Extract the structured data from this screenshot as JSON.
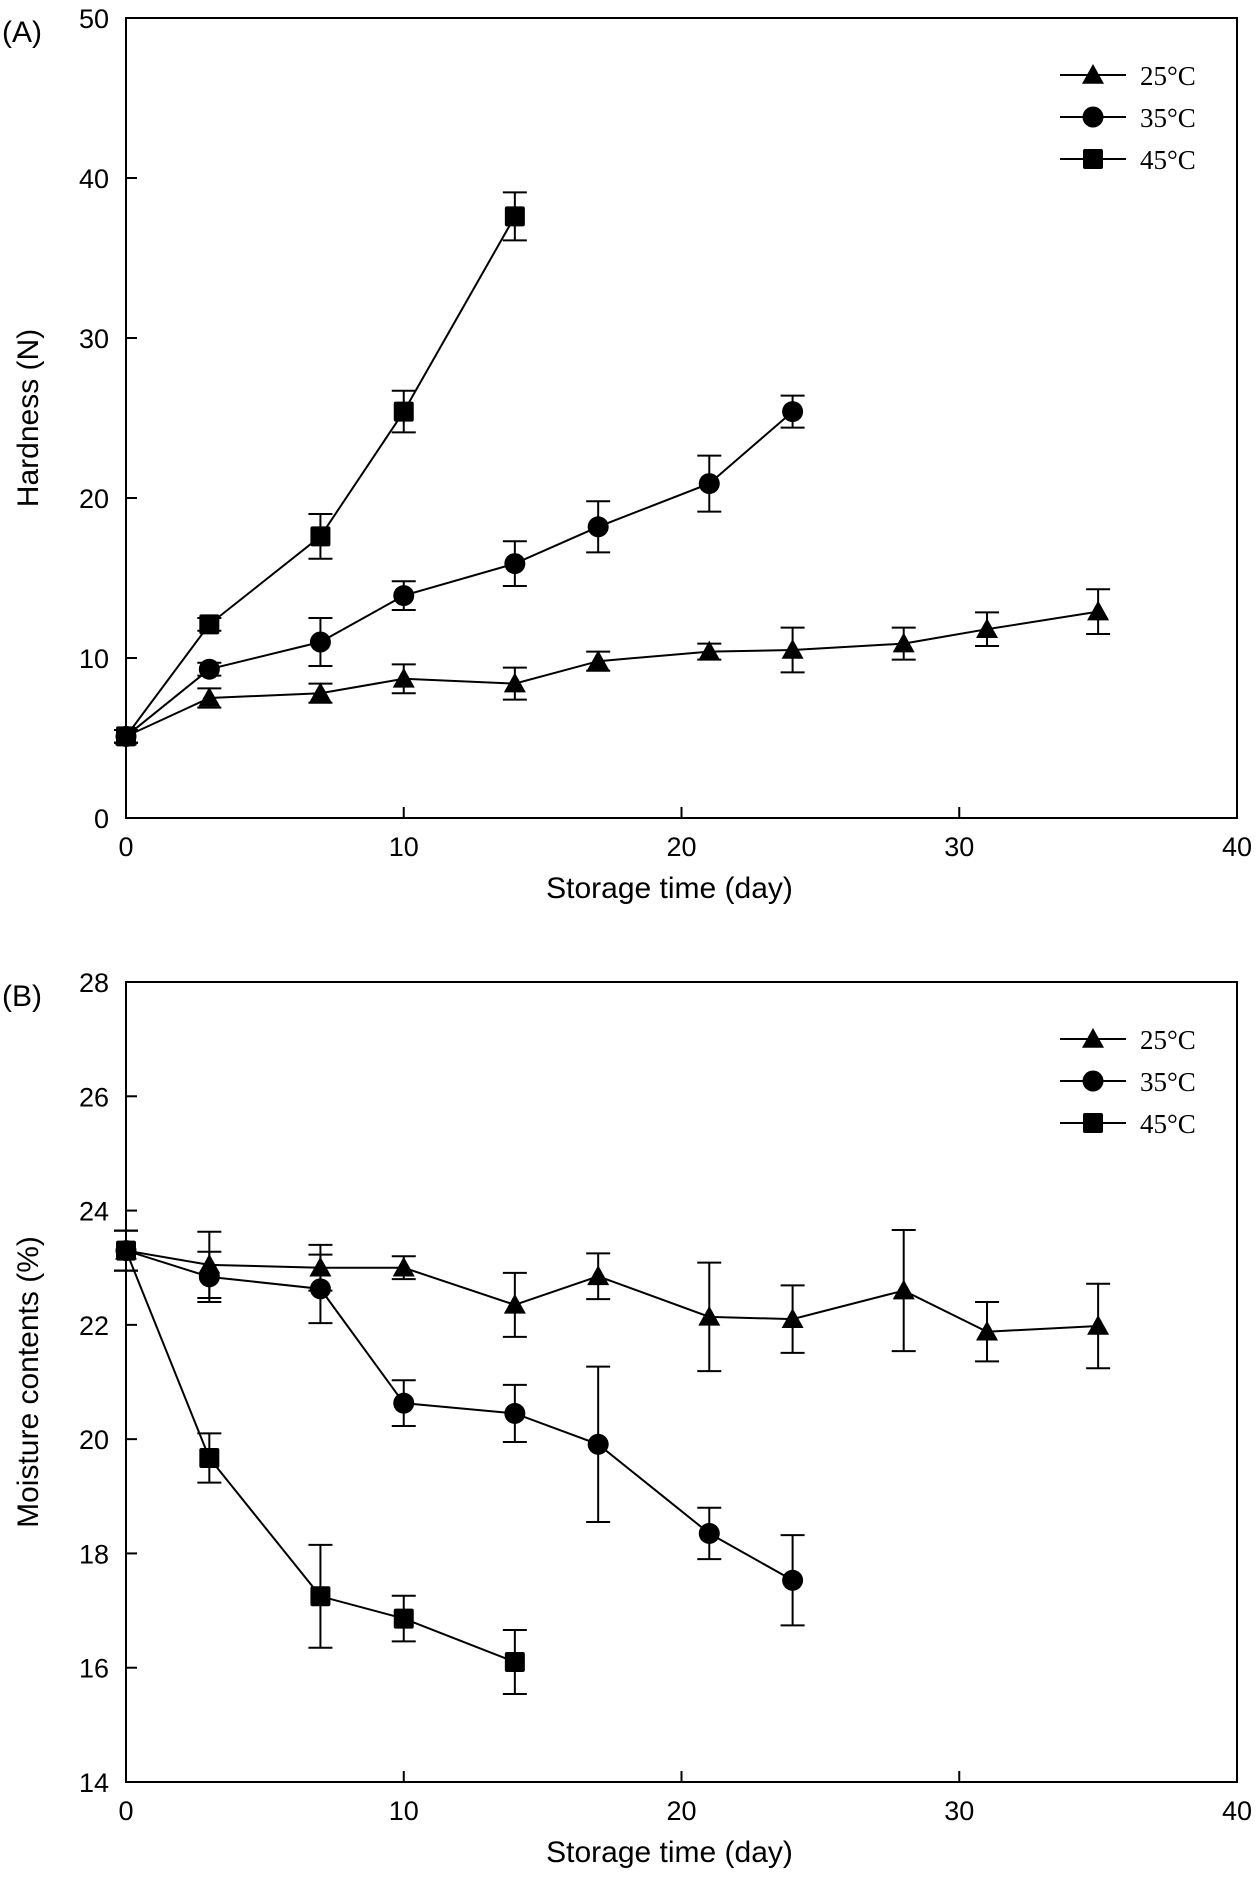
{
  "figure": {
    "background": "#ffffff",
    "ink_color": "#000000"
  },
  "chart_data": [
    {
      "type": "line",
      "panel_label": "(A)",
      "title": "",
      "xlabel": "Storage time (day)",
      "ylabel": "Hardness (N)",
      "xlim": [
        0,
        40
      ],
      "ylim": [
        0,
        50
      ],
      "xticks": [
        0,
        10,
        20,
        30,
        40
      ],
      "yticks": [
        0,
        10,
        20,
        30,
        40,
        50
      ],
      "xtick_labels": [
        "0",
        "10",
        "20",
        "30",
        "40"
      ],
      "ytick_labels": [
        "0",
        "10",
        "20",
        "30",
        "40",
        "50"
      ],
      "grid": false,
      "legend_position": "top-right",
      "error_bars": true,
      "series": [
        {
          "name": "25°C",
          "marker": "triangle",
          "x": [
            0,
            3,
            7,
            10,
            14,
            17,
            21,
            24,
            28,
            31,
            35
          ],
          "y": [
            5.1,
            7.5,
            7.8,
            8.7,
            8.4,
            9.8,
            10.4,
            10.5,
            10.9,
            11.8,
            12.9
          ],
          "err": [
            0.4,
            0.6,
            0.6,
            0.9,
            1.0,
            0.6,
            0.5,
            1.4,
            1.0,
            1.05,
            1.4
          ]
        },
        {
          "name": "35°C",
          "marker": "circle",
          "x": [
            0,
            3,
            7,
            10,
            14,
            17,
            21,
            24
          ],
          "y": [
            5.1,
            9.3,
            11.0,
            13.9,
            15.9,
            18.2,
            20.9,
            25.4
          ],
          "err": [
            0.4,
            0.4,
            1.5,
            0.9,
            1.4,
            1.6,
            1.75,
            1.0
          ]
        },
        {
          "name": "45°C",
          "marker": "square",
          "x": [
            0,
            3,
            7,
            10,
            14
          ],
          "y": [
            5.1,
            12.1,
            17.6,
            25.4,
            37.6
          ],
          "err": [
            0.4,
            0.4,
            1.4,
            1.3,
            1.5
          ]
        }
      ]
    },
    {
      "type": "line",
      "panel_label": "(B)",
      "title": "",
      "xlabel": "Storage time (day)",
      "ylabel": "Moisture contents (%)",
      "xlim": [
        0,
        40
      ],
      "ylim": [
        14,
        28
      ],
      "xticks": [
        0,
        10,
        20,
        30,
        40
      ],
      "yticks": [
        14,
        16,
        18,
        20,
        22,
        24,
        26,
        28
      ],
      "xtick_labels": [
        "0",
        "10",
        "20",
        "30",
        "40"
      ],
      "ytick_labels": [
        "14",
        "16",
        "18",
        "20",
        "22",
        "24",
        "26",
        "28"
      ],
      "grid": false,
      "legend_position": "top-right",
      "error_bars": true,
      "series": [
        {
          "name": "25°C",
          "marker": "triangle",
          "x": [
            0,
            3,
            7,
            10,
            14,
            17,
            21,
            24,
            28,
            31,
            35
          ],
          "y": [
            23.3,
            23.05,
            23.0,
            23.0,
            22.35,
            22.85,
            22.14,
            22.1,
            22.6,
            21.88,
            21.98
          ],
          "err": [
            0.35,
            0.58,
            0.4,
            0.2,
            0.56,
            0.4,
            0.95,
            0.59,
            1.06,
            0.52,
            0.74
          ]
        },
        {
          "name": "35°C",
          "marker": "circle",
          "x": [
            0,
            3,
            7,
            10,
            14,
            17,
            21,
            24
          ],
          "y": [
            23.3,
            22.84,
            22.63,
            20.63,
            20.45,
            19.91,
            18.35,
            17.53
          ],
          "err": [
            0.35,
            0.44,
            0.6,
            0.4,
            0.5,
            1.36,
            0.45,
            0.79
          ]
        },
        {
          "name": "45°C",
          "marker": "square",
          "x": [
            0,
            3,
            7,
            10,
            14
          ],
          "y": [
            23.3,
            19.67,
            17.25,
            16.86,
            16.1
          ],
          "err": [
            0.35,
            0.43,
            0.9,
            0.4,
            0.56
          ]
        }
      ]
    }
  ]
}
